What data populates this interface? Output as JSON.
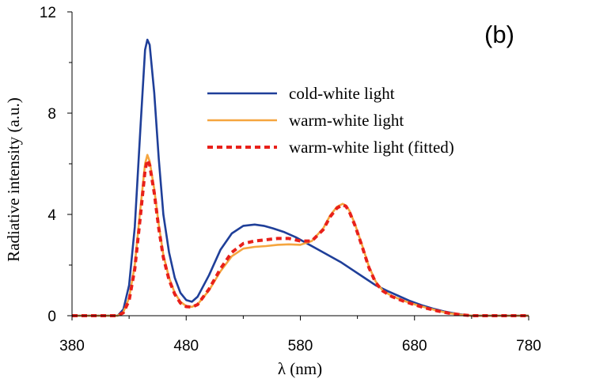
{
  "chart_data": {
    "type": "line",
    "panel_label": "(b)",
    "xlabel": "λ (nm)",
    "ylabel": "Radiative intensity (a.u.)",
    "xlim": [
      380,
      780
    ],
    "ylim": [
      0,
      12
    ],
    "x_ticks": [
      380,
      480,
      580,
      680,
      780
    ],
    "y_ticks": [
      0,
      4,
      8,
      12
    ],
    "grid": false,
    "legend_position": "upper-center",
    "series": [
      {
        "name": "cold-white light",
        "color": "#1f3f99",
        "style": "solid",
        "x": [
          380,
          420,
          425,
          430,
          435,
          440,
          444,
          446,
          448,
          452,
          456,
          460,
          465,
          470,
          475,
          480,
          485,
          490,
          500,
          510,
          520,
          530,
          540,
          548,
          556,
          566,
          576,
          586,
          596,
          606,
          616,
          626,
          636,
          646,
          656,
          666,
          676,
          686,
          696,
          706,
          716,
          726,
          730,
          780
        ],
        "y": [
          0,
          0,
          0.25,
          1.2,
          3.5,
          7.5,
          10.5,
          10.9,
          10.7,
          8.8,
          6.2,
          4.0,
          2.5,
          1.5,
          0.9,
          0.62,
          0.55,
          0.75,
          1.6,
          2.6,
          3.25,
          3.55,
          3.6,
          3.55,
          3.45,
          3.3,
          3.1,
          2.85,
          2.6,
          2.35,
          2.1,
          1.8,
          1.5,
          1.2,
          0.98,
          0.78,
          0.58,
          0.42,
          0.28,
          0.17,
          0.08,
          0.02,
          0,
          0
        ]
      },
      {
        "name": "warm-white light",
        "color": "#f5a53f",
        "style": "solid",
        "x": [
          380,
          420,
          425,
          430,
          435,
          440,
          444,
          446,
          448,
          452,
          456,
          460,
          465,
          470,
          475,
          480,
          485,
          490,
          500,
          510,
          520,
          530,
          540,
          550,
          560,
          570,
          580,
          590,
          600,
          606,
          612,
          617,
          620,
          623,
          628,
          634,
          640,
          646,
          652,
          660,
          670,
          680,
          690,
          700,
          710,
          720,
          730,
          780
        ],
        "y": [
          0,
          0,
          0.15,
          0.7,
          2.0,
          4.3,
          6.0,
          6.35,
          6.1,
          5.0,
          3.6,
          2.4,
          1.5,
          0.9,
          0.55,
          0.38,
          0.35,
          0.45,
          1.0,
          1.75,
          2.35,
          2.65,
          2.72,
          2.75,
          2.8,
          2.82,
          2.8,
          2.95,
          3.45,
          3.95,
          4.3,
          4.42,
          4.35,
          4.15,
          3.6,
          2.8,
          1.95,
          1.35,
          1.0,
          0.78,
          0.6,
          0.45,
          0.32,
          0.2,
          0.1,
          0.04,
          0,
          0
        ]
      },
      {
        "name": "warm-white light (fitted)",
        "color": "#e8201a",
        "style": "dashed",
        "x": [
          380,
          420,
          425,
          430,
          435,
          440,
          444,
          446,
          448,
          452,
          456,
          460,
          465,
          470,
          475,
          480,
          485,
          490,
          500,
          510,
          520,
          530,
          540,
          550,
          560,
          570,
          580,
          590,
          600,
          606,
          612,
          617,
          620,
          623,
          628,
          634,
          640,
          646,
          652,
          660,
          670,
          680,
          690,
          700,
          710,
          720,
          730,
          780
        ],
        "y": [
          0,
          0,
          0.12,
          0.6,
          1.85,
          4.0,
          5.75,
          6.15,
          5.95,
          4.85,
          3.45,
          2.3,
          1.42,
          0.85,
          0.5,
          0.36,
          0.34,
          0.44,
          1.05,
          1.85,
          2.5,
          2.85,
          2.95,
          3.0,
          3.05,
          3.05,
          2.95,
          2.95,
          3.4,
          3.9,
          4.25,
          4.38,
          4.32,
          4.1,
          3.55,
          2.75,
          1.9,
          1.3,
          0.98,
          0.76,
          0.58,
          0.43,
          0.3,
          0.19,
          0.1,
          0.04,
          0,
          0
        ]
      }
    ]
  }
}
